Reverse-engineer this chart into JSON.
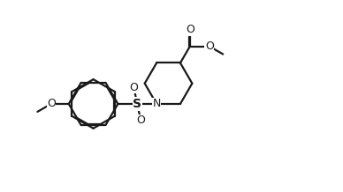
{
  "bg_color": "#ffffff",
  "line_color": "#1a1a1a",
  "line_width": 1.6,
  "dbo": 0.012,
  "figsize": [
    3.88,
    2.18
  ],
  "dpi": 100,
  "xlim": [
    0,
    3.88
  ],
  "ylim": [
    0,
    2.18
  ]
}
